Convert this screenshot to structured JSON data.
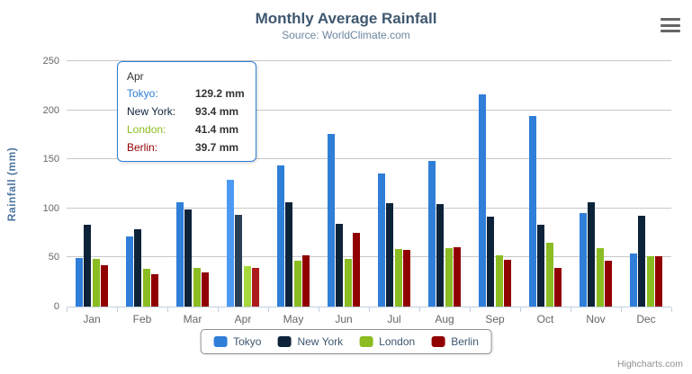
{
  "header": {
    "title": "Monthly Average Rainfall",
    "subtitle": "Source: WorldClimate.com"
  },
  "chart_data": {
    "type": "bar",
    "title": "Monthly Average Rainfall",
    "subtitle": "Source: WorldClimate.com",
    "categories": [
      "Jan",
      "Feb",
      "Mar",
      "Apr",
      "May",
      "Jun",
      "Jul",
      "Aug",
      "Sep",
      "Oct",
      "Nov",
      "Dec"
    ],
    "series": [
      {
        "name": "Tokyo",
        "color": "#2f7ed8",
        "values": [
          49.9,
          71.5,
          106.4,
          129.2,
          144.0,
          176.0,
          135.6,
          148.5,
          216.4,
          194.1,
          95.6,
          54.4
        ]
      },
      {
        "name": "New York",
        "color": "#0d233a",
        "values": [
          83.6,
          78.8,
          98.5,
          93.4,
          106.0,
          84.5,
          105.0,
          104.3,
          91.2,
          83.5,
          106.6,
          92.3
        ]
      },
      {
        "name": "London",
        "color": "#8bbc21",
        "values": [
          48.9,
          38.8,
          39.3,
          41.4,
          47.0,
          48.3,
          59.0,
          59.6,
          52.4,
          65.2,
          59.3,
          51.2
        ]
      },
      {
        "name": "Berlin",
        "color": "#910000",
        "values": [
          42.4,
          33.2,
          34.5,
          39.7,
          52.6,
          75.5,
          57.4,
          60.4,
          47.6,
          39.1,
          46.8,
          51.1
        ]
      }
    ],
    "xlabel": "",
    "ylabel": "Rainfall (mm)",
    "ylim": [
      0,
      250
    ],
    "ytick_interval": 50,
    "grid": true,
    "legend_position": "bottom-center",
    "hover_category": "Apr"
  },
  "tooltip": {
    "category": "Apr",
    "rows": [
      {
        "label": "Tokyo:",
        "value": "129.2 mm",
        "color": "#2f7ed8"
      },
      {
        "label": "New York:",
        "value": "93.4 mm",
        "color": "#0d233a"
      },
      {
        "label": "London:",
        "value": "41.4 mm",
        "color": "#8bbc21"
      },
      {
        "label": "Berlin:",
        "value": "39.7 mm",
        "color": "#910000"
      }
    ],
    "border_color": "#2f7ed8"
  },
  "legend": {
    "items": [
      {
        "label": "Tokyo",
        "color": "#2f7ed8"
      },
      {
        "label": "New York",
        "color": "#0d233a"
      },
      {
        "label": "London",
        "color": "#8bbc21"
      },
      {
        "label": "Berlin",
        "color": "#910000"
      }
    ]
  },
  "credit": {
    "label": "Highcharts.com"
  },
  "colors": {
    "title": "#3e576f",
    "subtitle": "#6d869f",
    "axis_title": "#4d759e",
    "axis_labels": "#666666",
    "gridline": "#c8c8c8",
    "axis_line": "#c0d0e0",
    "legend_border": "#909090",
    "credit": "#909090"
  }
}
